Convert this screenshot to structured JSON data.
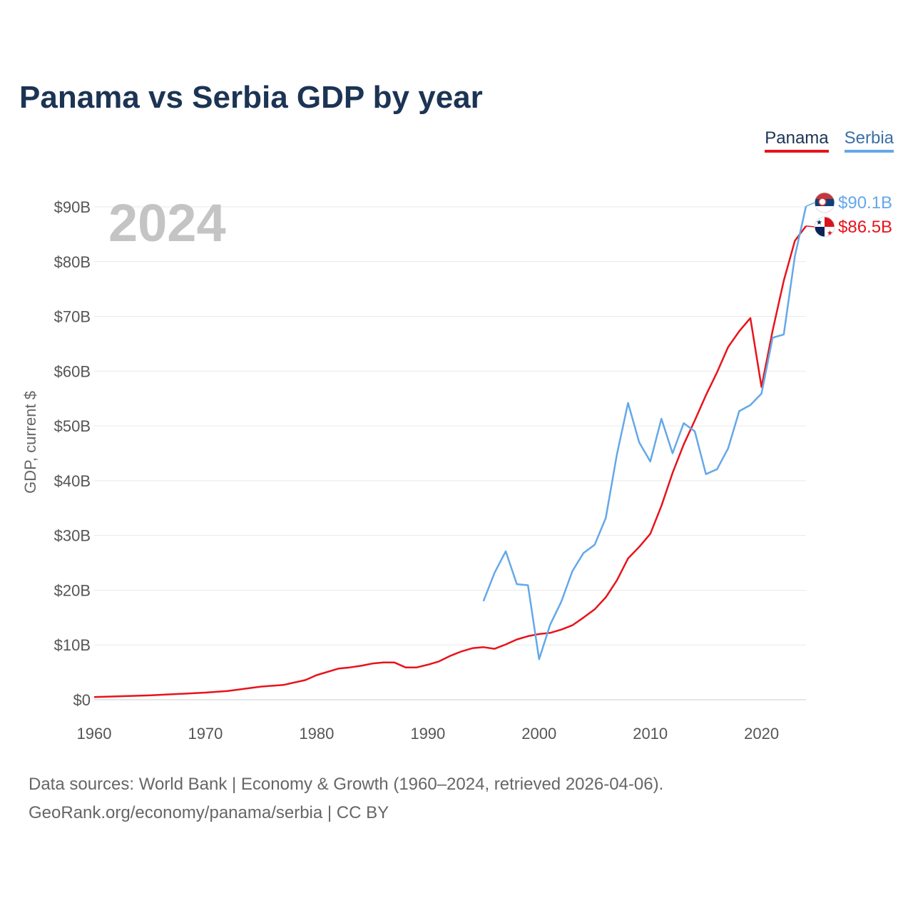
{
  "title": "Panama vs Serbia GDP by year",
  "legend": [
    "Panama",
    "Serbia"
  ],
  "year_label": "2024",
  "colors": {
    "panama": "#e8131b",
    "serbia": "#64a8e8",
    "title": "#1c3454"
  },
  "chart_data": {
    "type": "line",
    "title": "Panama vs Serbia GDP by year",
    "xlabel": "",
    "ylabel": "GDP, current $",
    "xlim": [
      1960,
      2024
    ],
    "ylim": [
      0,
      90
    ],
    "y_unit": "billions USD",
    "x_ticks": [
      "1960",
      "1970",
      "1980",
      "1990",
      "2000",
      "2010",
      "2020"
    ],
    "x_tick_values": [
      1960,
      1970,
      1980,
      1990,
      2000,
      2010,
      2020
    ],
    "y_ticks": [
      "$0",
      "$10B",
      "$20B",
      "$30B",
      "$40B",
      "$50B",
      "$60B",
      "$70B",
      "$80B",
      "$90B"
    ],
    "y_tick_values": [
      0,
      10,
      20,
      30,
      40,
      50,
      60,
      70,
      80,
      90
    ],
    "series": [
      {
        "name": "Panama",
        "color": "#e8131b",
        "end_label": "$86.5B",
        "x": [
          1960,
          1965,
          1970,
          1972,
          1975,
          1977,
          1979,
          1980,
          1982,
          1983,
          1984,
          1985,
          1986,
          1987,
          1988,
          1989,
          1990,
          1991,
          1992,
          1993,
          1994,
          1995,
          1996,
          1997,
          1998,
          1999,
          2000,
          2001,
          2002,
          2003,
          2004,
          2005,
          2006,
          2007,
          2008,
          2009,
          2010,
          2011,
          2012,
          2013,
          2014,
          2015,
          2016,
          2017,
          2018,
          2019,
          2020,
          2021,
          2022,
          2023,
          2024
        ],
        "values": [
          0.5,
          0.8,
          1.3,
          1.6,
          2.4,
          2.7,
          3.6,
          4.5,
          5.7,
          5.9,
          6.2,
          6.6,
          6.8,
          6.8,
          5.9,
          5.9,
          6.4,
          7.0,
          8.0,
          8.8,
          9.4,
          9.6,
          9.3,
          10.1,
          11.0,
          11.6,
          12.0,
          12.2,
          12.8,
          13.6,
          15.0,
          16.5,
          18.7,
          21.8,
          25.8,
          27.9,
          30.3,
          35.4,
          41.4,
          46.6,
          51.0,
          55.6,
          59.8,
          64.4,
          67.3,
          69.7,
          57.1,
          67.4,
          76.5,
          83.8,
          86.5
        ]
      },
      {
        "name": "Serbia",
        "color": "#64a8e8",
        "end_label": "$90.1B",
        "x": [
          1995,
          1996,
          1997,
          1998,
          1999,
          2000,
          2001,
          2002,
          2003,
          2004,
          2005,
          2006,
          2007,
          2008,
          2009,
          2010,
          2011,
          2012,
          2013,
          2014,
          2015,
          2016,
          2017,
          2018,
          2019,
          2020,
          2021,
          2022,
          2023,
          2024
        ],
        "values": [
          18.0,
          23.2,
          27.1,
          21.1,
          20.9,
          7.4,
          13.7,
          17.9,
          23.5,
          26.8,
          28.3,
          33.2,
          44.8,
          54.2,
          47.0,
          43.5,
          51.3,
          45.0,
          50.5,
          49.0,
          41.2,
          42.1,
          45.9,
          52.7,
          53.8,
          55.9,
          66.1,
          66.7,
          81.0,
          90.1
        ]
      }
    ]
  },
  "footer": {
    "line1": "Data sources: World Bank | Economy & Growth (1960–2024, retrieved 2026-04-06).",
    "line2": "GeoRank.org/economy/panama/serbia | CC BY"
  }
}
